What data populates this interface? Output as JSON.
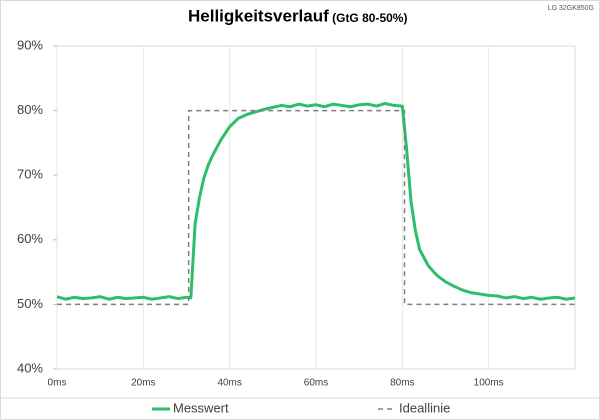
{
  "chart_data": {
    "type": "line",
    "title": "Helligkeitsverlauf",
    "subtitle": "(GtG 80-50%)",
    "annotation": "LG 32GK850G",
    "xlim": [
      0,
      120
    ],
    "ylim": [
      40,
      90
    ],
    "xticks": [
      {
        "value": 0,
        "label": "0ms"
      },
      {
        "value": 20,
        "label": "20ms"
      },
      {
        "value": 40,
        "label": "40ms"
      },
      {
        "value": 60,
        "label": "60ms"
      },
      {
        "value": 80,
        "label": "80ms"
      },
      {
        "value": 100,
        "label": "100ms"
      }
    ],
    "yticks": [
      {
        "value": 40,
        "label": "40%"
      },
      {
        "value": 50,
        "label": "50%"
      },
      {
        "value": 60,
        "label": "60%"
      },
      {
        "value": 70,
        "label": "70%"
      },
      {
        "value": 80,
        "label": "80%"
      },
      {
        "value": 90,
        "label": "90%"
      }
    ],
    "grid": true,
    "legend": "bottom",
    "series": [
      {
        "name": "Messwert",
        "color": "#2dbe6c",
        "x": [
          0,
          2,
          4,
          6,
          8,
          10,
          12,
          14,
          16,
          18,
          20,
          22,
          24,
          26,
          28,
          30,
          31,
          32,
          33,
          34,
          35,
          36,
          38,
          40,
          42,
          44,
          46,
          48,
          50,
          52,
          54,
          56,
          58,
          60,
          62,
          64,
          66,
          68,
          70,
          72,
          74,
          76,
          78,
          80,
          81,
          82,
          83,
          84,
          86,
          88,
          90,
          92,
          94,
          96,
          98,
          100,
          102,
          104,
          106,
          108,
          110,
          112,
          114,
          116,
          118,
          120
        ],
        "values": [
          51.2,
          50.8,
          51.1,
          50.9,
          51.0,
          51.2,
          50.8,
          51.1,
          50.9,
          51.0,
          51.1,
          50.8,
          51.0,
          51.2,
          50.9,
          51.1,
          51.0,
          62.5,
          66.5,
          69.5,
          71.5,
          73.0,
          75.5,
          77.5,
          78.8,
          79.4,
          79.8,
          80.2,
          80.5,
          80.8,
          80.6,
          81.0,
          80.7,
          80.9,
          80.6,
          81.0,
          80.8,
          80.6,
          80.9,
          81.0,
          80.7,
          81.1,
          80.8,
          80.7,
          74.0,
          66.0,
          61.5,
          58.5,
          56.0,
          54.5,
          53.5,
          52.8,
          52.2,
          51.8,
          51.6,
          51.4,
          51.3,
          51.0,
          51.2,
          50.9,
          51.1,
          50.8,
          51.0,
          51.1,
          50.8,
          51.0
        ]
      },
      {
        "name": "Ideallinie",
        "color": "#7f7f7f",
        "dashed": true,
        "x": [
          0,
          30.5,
          30.5,
          80.5,
          80.5,
          120
        ],
        "values": [
          50,
          50,
          80,
          80,
          50,
          50
        ]
      }
    ]
  }
}
